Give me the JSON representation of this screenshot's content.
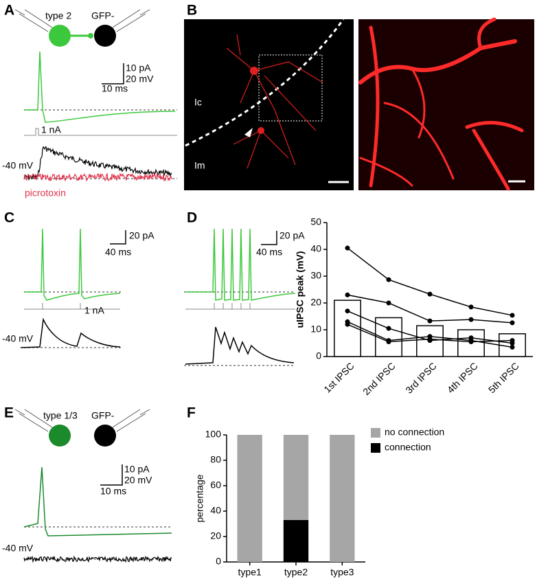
{
  "panel_labels": [
    "A",
    "B",
    "C",
    "D",
    "E",
    "F"
  ],
  "panel_a": {
    "cells": [
      "type 2",
      "GFP-"
    ],
    "scale": [
      "10 pA",
      "20 mV",
      "10 ms"
    ],
    "stim": "1 nA",
    "holding": "-40 mV",
    "drug": "picrotoxin"
  },
  "panel_b": {
    "regions": [
      "Ic",
      "Im"
    ]
  },
  "panel_c": {
    "scale": [
      "20 pA",
      "40 ms"
    ],
    "stim": "1 nA",
    "holding": "-40 mV"
  },
  "panel_d": {
    "scale": [
      "20 pA",
      "40 ms"
    ]
  },
  "panel_e": {
    "cells": [
      "type 1/3",
      "GFP-"
    ],
    "scale": [
      "10 pA",
      "20 mV",
      "10 ms"
    ],
    "holding": "-40 mV"
  },
  "chart_data": [
    {
      "type": "bar",
      "ylabel": "uIPSC peak (mV)",
      "categories": [
        "1st IPSC",
        "2nd IPSC",
        "3rd IPSC",
        "4th IPSC",
        "5th IPSC"
      ],
      "values": [
        21,
        14.5,
        11.5,
        10,
        8.5
      ],
      "color": "#ffffff",
      "lines": [
        {
          "values": [
            40.5,
            28.7,
            23.3,
            18.5,
            15.4
          ],
          "color": "#000000"
        },
        {
          "values": [
            23,
            20,
            13.3,
            13.8,
            12.6
          ],
          "color": "#000000"
        },
        {
          "values": [
            17,
            10.5,
            6,
            7,
            5
          ],
          "color": "#000000"
        },
        {
          "values": [
            13,
            6,
            7.5,
            6,
            3.5
          ],
          "color": "#000000"
        },
        {
          "values": [
            12,
            5.5,
            6.5,
            5.5,
            6
          ],
          "color": "#000000"
        }
      ],
      "ylim": [
        0,
        50
      ],
      "yticks": [
        0,
        10,
        20,
        30,
        40,
        50
      ]
    },
    {
      "type": "stacked-bar",
      "ylabel": "percentage",
      "categories": [
        "type1",
        "type2",
        "type3"
      ],
      "series": [
        {
          "name": "connection",
          "color": "#000000",
          "values": [
            0,
            33,
            0
          ]
        },
        {
          "name": "no connection",
          "color": "#a6a6a6",
          "values": [
            100,
            67,
            100
          ]
        }
      ],
      "ylim": [
        0,
        100
      ],
      "yticks": [
        0,
        20,
        40,
        60,
        80,
        100
      ],
      "legend": "top-right"
    }
  ]
}
